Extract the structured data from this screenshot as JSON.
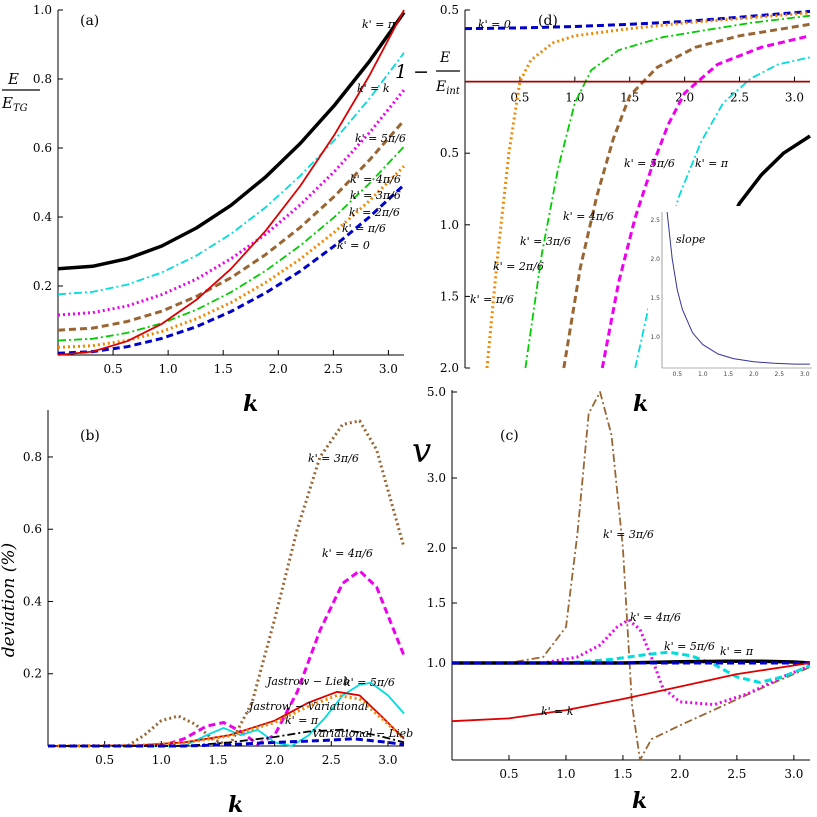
{
  "chart_data": [
    {
      "panel": "(a)",
      "type": "line",
      "xlabel": "k",
      "ylabel_num": "E",
      "ylabel_den": "E",
      "ylabel_den_sub": "TG",
      "xlim": [
        0,
        3.1416
      ],
      "ylim": [
        0,
        1.0
      ],
      "xticks": [
        "0.5",
        "1.0",
        "1.5",
        "2.0",
        "2.5",
        "3.0"
      ],
      "yticks": [
        "0.2",
        "0.4",
        "0.6",
        "0.8",
        "1.0"
      ],
      "x": [
        0,
        0.3142,
        0.6283,
        0.9425,
        1.2566,
        1.5708,
        1.885,
        2.1991,
        2.5133,
        2.8274,
        3.1416
      ],
      "series": [
        {
          "name": "k' = π",
          "color": "#000000",
          "style": "solid",
          "values": [
            0.25,
            0.257,
            0.279,
            0.316,
            0.368,
            0.434,
            0.516,
            0.613,
            0.725,
            0.851,
            0.993
          ]
        },
        {
          "name": "k' = 5π/6",
          "color": "#00dddd",
          "style": "dashdot",
          "values": [
            0.176,
            0.183,
            0.204,
            0.239,
            0.288,
            0.351,
            0.428,
            0.519,
            0.624,
            0.743,
            0.876
          ]
        },
        {
          "name": "k' = 4π/6",
          "color": "#ee00ee",
          "style": "dot",
          "values": [
            0.116,
            0.123,
            0.142,
            0.175,
            0.22,
            0.279,
            0.35,
            0.435,
            0.533,
            0.644,
            0.768
          ]
        },
        {
          "name": "k' = 3π/6",
          "color": "#996633",
          "style": "dash",
          "values": [
            0.072,
            0.078,
            0.097,
            0.127,
            0.17,
            0.224,
            0.291,
            0.37,
            0.461,
            0.565,
            0.68
          ]
        },
        {
          "name": "k' = 2π/6",
          "color": "#00cc00",
          "style": "dashdot",
          "values": [
            0.042,
            0.047,
            0.064,
            0.092,
            0.131,
            0.182,
            0.244,
            0.317,
            0.401,
            0.497,
            0.604
          ]
        },
        {
          "name": "k' = π/6",
          "color": "#ee8800",
          "style": "dot",
          "values": [
            0.022,
            0.027,
            0.042,
            0.068,
            0.105,
            0.152,
            0.21,
            0.278,
            0.357,
            0.447,
            0.547
          ]
        },
        {
          "name": "k' = 0",
          "color": "#0000cc",
          "style": "dash",
          "values": [
            0.005,
            0.01,
            0.024,
            0.048,
            0.082,
            0.126,
            0.18,
            0.243,
            0.317,
            0.4,
            0.493
          ]
        },
        {
          "name": "k' = k",
          "color": "#dd0000",
          "style": "solid",
          "values": [
            0.0,
            0.01,
            0.04,
            0.09,
            0.16,
            0.25,
            0.36,
            0.49,
            0.64,
            0.81,
            1.0
          ]
        }
      ]
    },
    {
      "panel": "(d)",
      "type": "line",
      "xlabel": "k",
      "ylabel_prefix": "1 −",
      "ylabel_num": "E",
      "ylabel_den": "E",
      "ylabel_den_sub": "int",
      "xlim": [
        0,
        3.1416
      ],
      "ylim": [
        -2.0,
        0.5
      ],
      "xticks": [
        "0.5",
        "1.0",
        "1.5",
        "2.0",
        "2.5",
        "3.0"
      ],
      "yticks": [
        "0.5",
        "0.5",
        "1.0",
        "1.5",
        "2.0"
      ],
      "series": [
        {
          "name": "k' = 0",
          "color": "#0000cc",
          "style": "dash",
          "x": [
            0,
            0.5,
            1.0,
            1.5,
            2.0,
            2.5,
            3.1416
          ],
          "values": [
            0.37,
            0.375,
            0.385,
            0.4,
            0.42,
            0.45,
            0.49
          ]
        },
        {
          "name": "k' = π/6",
          "color": "#ee8800",
          "style": "dot",
          "x": [
            0.2,
            0.3,
            0.4,
            0.5,
            0.6,
            0.8,
            1.0,
            1.5,
            2.0,
            2.5,
            3.1416
          ],
          "values": [
            -2.0,
            -1.2,
            -0.5,
            0.0,
            0.15,
            0.27,
            0.32,
            0.37,
            0.41,
            0.44,
            0.48
          ]
        },
        {
          "name": "k' = 2π/6",
          "color": "#00cc00",
          "style": "dashdot",
          "x": [
            0.55,
            0.7,
            0.85,
            1.0,
            1.15,
            1.4,
            1.8,
            2.2,
            2.6,
            3.1416
          ],
          "values": [
            -2.0,
            -1.2,
            -0.6,
            -0.15,
            0.08,
            0.22,
            0.31,
            0.36,
            0.41,
            0.46
          ]
        },
        {
          "name": "k' = 3π/6",
          "color": "#996633",
          "style": "dash",
          "x": [
            0.9,
            1.05,
            1.2,
            1.35,
            1.5,
            1.75,
            2.1,
            2.5,
            3.1416
          ],
          "values": [
            -2.0,
            -1.3,
            -0.8,
            -0.4,
            -0.1,
            0.1,
            0.24,
            0.32,
            0.4
          ]
        },
        {
          "name": "k' = 4π/6",
          "color": "#ee00ee",
          "style": "dash",
          "x": [
            1.25,
            1.4,
            1.55,
            1.7,
            1.85,
            2.0,
            2.3,
            2.7,
            3.1416
          ],
          "values": [
            -2.0,
            -1.4,
            -0.95,
            -0.6,
            -0.3,
            -0.08,
            0.12,
            0.24,
            0.32
          ]
        },
        {
          "name": "k' = 5π/6",
          "color": "#00dddd",
          "style": "dashdot",
          "x": [
            1.55,
            1.75,
            1.95,
            2.15,
            2.35,
            2.6,
            2.85,
            3.1416
          ],
          "values": [
            -2.0,
            -1.3,
            -0.8,
            -0.42,
            -0.15,
            0.02,
            0.12,
            0.17
          ]
        },
        {
          "name": "k' = π",
          "color": "#000000",
          "style": "solid",
          "x": [
            1.9,
            2.1,
            2.3,
            2.5,
            2.7,
            2.9,
            3.1416
          ],
          "values": [
            -2.0,
            -1.55,
            -1.15,
            -0.85,
            -0.65,
            -0.5,
            -0.38
          ]
        },
        {
          "name": "",
          "color": "#aa0000",
          "style": "solid",
          "x": [
            0,
            3.1416
          ],
          "values": [
            0.0,
            0.0
          ]
        }
      ],
      "inset": {
        "label": "slope",
        "color": "#333399",
        "xticks": [
          "0.5",
          "1.0",
          "1.5",
          "2.0",
          "2.5",
          "3.0"
        ],
        "yticks": [
          "1.0",
          "1.5",
          "2.0",
          "2.5"
        ],
        "xlim": [
          0.2,
          3.1416
        ],
        "ylim": [
          0.6,
          2.6
        ],
        "x": [
          0.3,
          0.4,
          0.5,
          0.6,
          0.8,
          1.0,
          1.3,
          1.6,
          2.0,
          2.4,
          2.8,
          3.1
        ],
        "values": [
          2.6,
          2.0,
          1.6,
          1.35,
          1.05,
          0.9,
          0.78,
          0.72,
          0.68,
          0.66,
          0.65,
          0.65
        ]
      }
    },
    {
      "panel": "(b)",
      "type": "line",
      "xlabel": "k",
      "ylabel": "deviation (%)",
      "xlim": [
        0,
        3.1416
      ],
      "ylim": [
        0,
        0.93
      ],
      "xticks": [
        "0.5",
        "1.0",
        "1.5",
        "2.0",
        "2.5",
        "3.0"
      ],
      "yticks": [
        "0.2",
        "0.4",
        "0.6",
        "0.8"
      ],
      "series": [
        {
          "name": "k' = 3π/6",
          "color": "#996633",
          "style": "dot",
          "x": [
            0,
            0.7,
            0.85,
            1.0,
            1.15,
            1.3,
            1.45,
            1.6,
            1.8,
            2.0,
            2.2,
            2.4,
            2.6,
            2.75,
            2.9,
            3.1416
          ],
          "values": [
            0,
            0,
            0.03,
            0.07,
            0.083,
            0.06,
            0.02,
            0.0,
            0.12,
            0.35,
            0.6,
            0.8,
            0.89,
            0.9,
            0.82,
            0.55
          ]
        },
        {
          "name": "k' = 4π/6",
          "color": "#ee00ee",
          "style": "dash",
          "x": [
            0,
            1.0,
            1.2,
            1.4,
            1.55,
            1.7,
            1.85,
            2.0,
            2.2,
            2.4,
            2.6,
            2.75,
            2.9,
            3.1416
          ],
          "values": [
            0,
            0,
            0.02,
            0.055,
            0.065,
            0.04,
            0.005,
            0.03,
            0.15,
            0.32,
            0.45,
            0.485,
            0.44,
            0.25
          ]
        },
        {
          "name": "k' = 5π/6",
          "color": "#00dddd",
          "style": "solid",
          "x": [
            0,
            1.2,
            1.4,
            1.55,
            1.7,
            1.85,
            2.0,
            2.15,
            2.3,
            2.45,
            2.6,
            2.75,
            2.85,
            3.0,
            3.1416
          ],
          "values": [
            0,
            0,
            0.03,
            0.05,
            0.03,
            0.045,
            0.01,
            0.0,
            0.03,
            0.08,
            0.14,
            0.17,
            0.175,
            0.14,
            0.09
          ]
        },
        {
          "name": "Jastrow − Lieb",
          "color": "#dd0000",
          "style": "solid",
          "x": [
            0,
            0.8,
            1.2,
            1.6,
            2.0,
            2.3,
            2.55,
            2.75,
            2.95,
            3.1416
          ],
          "values": [
            0,
            0.002,
            0.01,
            0.03,
            0.07,
            0.12,
            0.15,
            0.14,
            0.08,
            0.02
          ]
        },
        {
          "name": "Jastrow − Variational",
          "color": "#ee8800",
          "style": "dot",
          "x": [
            0,
            0.8,
            1.2,
            1.6,
            2.0,
            2.3,
            2.55,
            2.75,
            2.95,
            3.1416
          ],
          "values": [
            0,
            0.002,
            0.009,
            0.028,
            0.065,
            0.11,
            0.14,
            0.13,
            0.075,
            0.02
          ]
        },
        {
          "name": "k' = π",
          "color": "#000000",
          "style": "dashdot",
          "x": [
            0,
            1.2,
            1.6,
            2.0,
            2.3,
            2.6,
            2.9,
            3.1416
          ],
          "values": [
            0,
            0.0,
            0.01,
            0.025,
            0.04,
            0.045,
            0.03,
            0.01
          ]
        },
        {
          "name": "Variational − Lieb",
          "color": "#0000cc",
          "style": "dash",
          "x": [
            0,
            1.2,
            1.6,
            2.0,
            2.4,
            2.7,
            3.0,
            3.1416
          ],
          "values": [
            0,
            0.0,
            0.004,
            0.01,
            0.015,
            0.02,
            0.01,
            0.004
          ]
        }
      ]
    },
    {
      "panel": "(c)",
      "type": "line",
      "xlabel": "k",
      "ylabel": "v",
      "xlim": [
        0,
        3.1416
      ],
      "ylim": [
        0.3,
        5.1
      ],
      "xticks": [
        "0.5",
        "1.0",
        "1.5",
        "2.0",
        "2.5",
        "3.0"
      ],
      "yticks": [
        "1.0",
        "1.5",
        "2.0",
        "3.0",
        "5.0"
      ],
      "series": [
        {
          "name": "k' = 3π/6",
          "color": "#996633",
          "style": "dashdot",
          "x": [
            0,
            0.5,
            0.8,
            1.0,
            1.1,
            1.2,
            1.3,
            1.4,
            1.5,
            1.58,
            1.65,
            1.75,
            2.0,
            2.4,
            2.8,
            3.1416
          ],
          "values": [
            1.0,
            1.0,
            1.05,
            1.3,
            2.2,
            4.5,
            5.0,
            4.0,
            2.0,
            0.7,
            0.3,
            0.45,
            0.55,
            0.7,
            0.85,
            0.97
          ]
        },
        {
          "name": "k' = 4π/6",
          "color": "#ee00ee",
          "style": "dot",
          "x": [
            0,
            0.8,
            1.1,
            1.3,
            1.45,
            1.55,
            1.65,
            1.75,
            1.85,
            2.0,
            2.3,
            2.6,
            2.9,
            3.1416
          ],
          "values": [
            1.0,
            1.0,
            1.05,
            1.15,
            1.3,
            1.36,
            1.28,
            1.05,
            0.82,
            0.72,
            0.7,
            0.78,
            0.9,
            0.98
          ]
        },
        {
          "name": "k' = 5π/6",
          "color": "#00dddd",
          "style": "dash",
          "x": [
            0,
            1.0,
            1.4,
            1.7,
            1.9,
            2.1,
            2.3,
            2.5,
            2.7,
            2.9,
            3.1416
          ],
          "values": [
            1.0,
            1.0,
            1.03,
            1.07,
            1.09,
            1.06,
            0.99,
            0.9,
            0.86,
            0.9,
            0.98
          ]
        },
        {
          "name": "k' = π",
          "color": "#000000",
          "style": "solid",
          "x": [
            0,
            1.5,
            2.0,
            2.4,
            2.7,
            3.0,
            3.1416
          ],
          "values": [
            1.0,
            1.0,
            1.01,
            1.015,
            1.015,
            1.008,
            1.0
          ]
        },
        {
          "name": "",
          "color": "#0000cc",
          "style": "dash",
          "x": [
            0,
            3.1416
          ],
          "values": [
            1.0,
            1.0
          ]
        },
        {
          "name": "k' = k",
          "color": "#dd0000",
          "style": "solid",
          "x": [
            0,
            0.5,
            1.0,
            1.5,
            2.0,
            2.5,
            3.1416
          ],
          "values": [
            0.58,
            0.6,
            0.66,
            0.74,
            0.83,
            0.92,
            1.0
          ]
        }
      ]
    }
  ]
}
